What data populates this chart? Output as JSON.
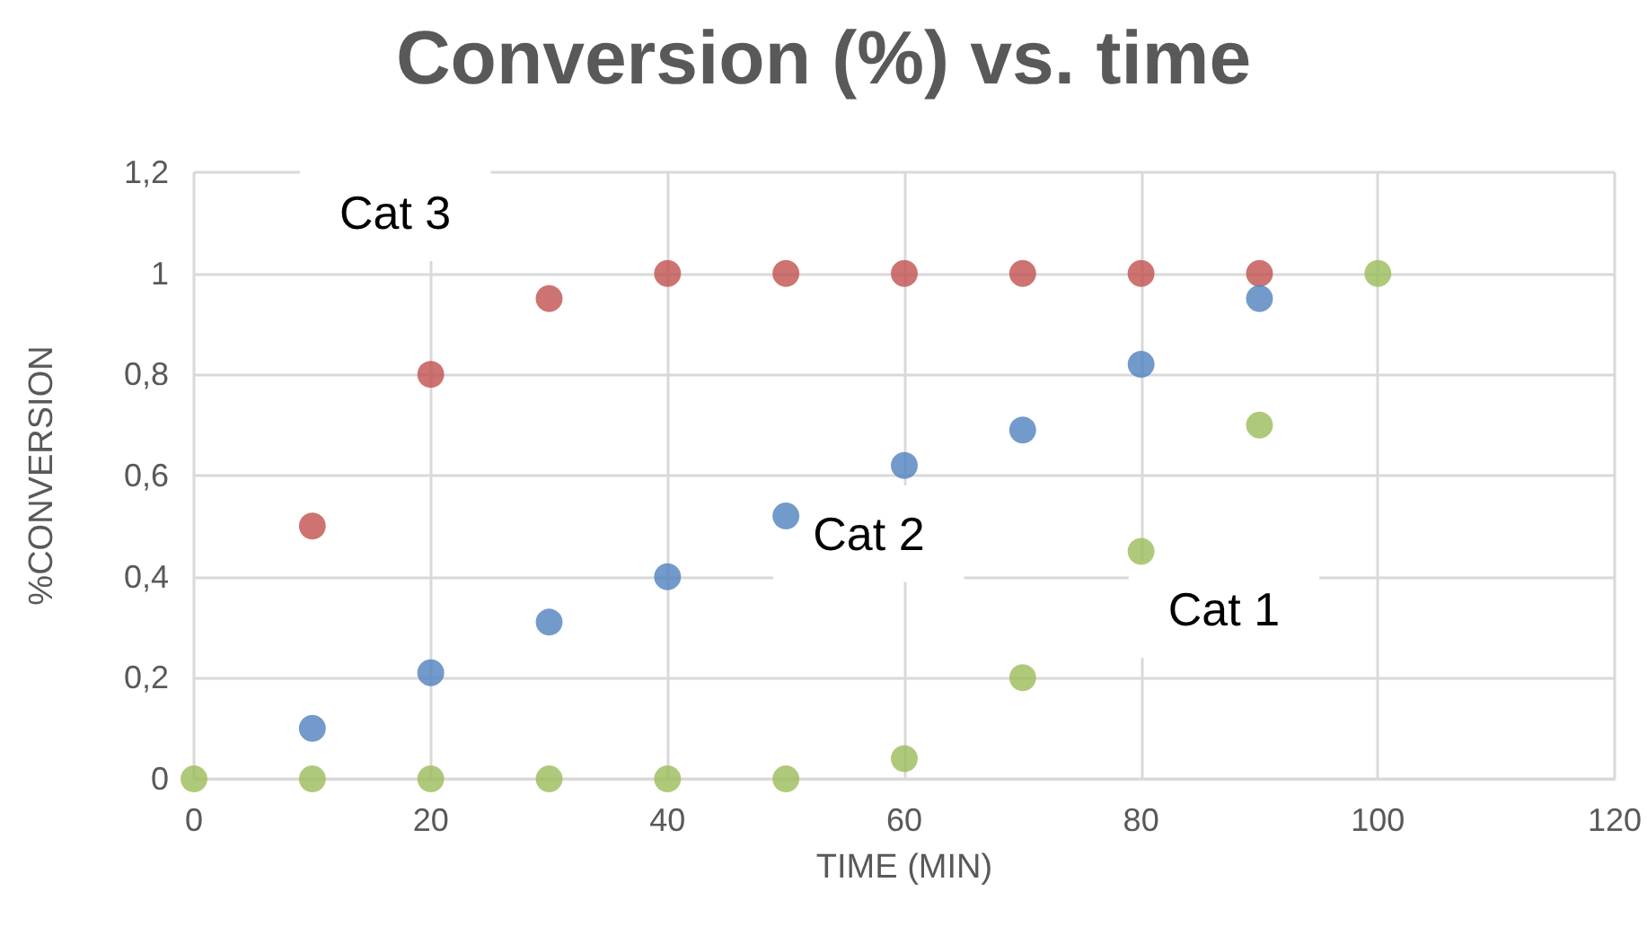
{
  "chart_data": {
    "type": "scatter",
    "title": "Conversion (%) vs. time",
    "xlabel": "TIME (MIN)",
    "ylabel": "%CONVERSION",
    "x": [
      0,
      10,
      20,
      30,
      40,
      50,
      60,
      70,
      80,
      90,
      100
    ],
    "series": [
      {
        "name": "Cat 3",
        "color": "#c0504d",
        "values": [
          null,
          0.5,
          0.8,
          0.95,
          1,
          1,
          1,
          1,
          1,
          1,
          null
        ]
      },
      {
        "name": "Cat 2",
        "color": "#4f81bd",
        "values": [
          null,
          0.1,
          0.21,
          0.31,
          0.4,
          0.52,
          0.62,
          0.69,
          0.82,
          0.95,
          null
        ]
      },
      {
        "name": "Cat 1",
        "color": "#9bbb59",
        "values": [
          0,
          0,
          0,
          0,
          0,
          0,
          0.04,
          0.2,
          0.45,
          0.7,
          1
        ]
      }
    ],
    "xlim": [
      0,
      120
    ],
    "xticks": [
      0,
      20,
      40,
      60,
      80,
      100,
      120
    ],
    "ylim": [
      0,
      1.2
    ],
    "yticks": [
      0,
      {
        "value": 0.2,
        "label": "0,2"
      },
      {
        "value": 0.4,
        "label": "0,4"
      },
      {
        "value": 0.6,
        "label": "0,6"
      },
      {
        "value": 0.8,
        "label": "0,8"
      },
      1,
      {
        "value": 1.2,
        "label": "1,2"
      }
    ],
    "grid": true,
    "legend": false,
    "marker": "circle"
  }
}
